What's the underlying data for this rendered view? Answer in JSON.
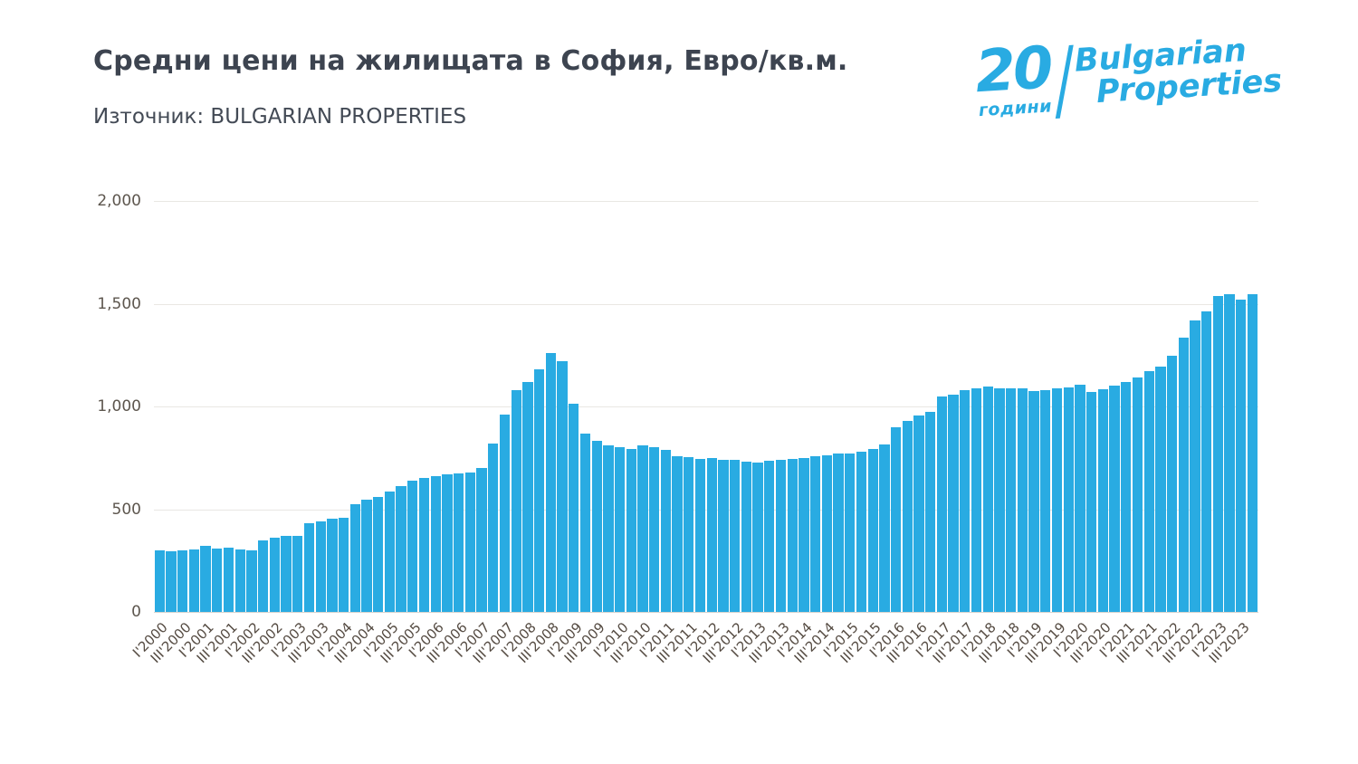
{
  "header": {
    "title": "Средни цени на жилищата в София, Евро/кв.м.",
    "source": "Източник: BULGARIAN PROPERTIES"
  },
  "logo": {
    "number": "20",
    "years_label": "години",
    "brand_line1": "Bulgarian",
    "brand_line2": "Properties",
    "color": "#29abe2"
  },
  "chart_data": {
    "type": "bar",
    "title": "Средни цени на жилищата в София, Евро/кв.м.",
    "source_label": "Източник: BULGARIAN PROPERTIES",
    "unit": "EUR/sq.m",
    "bar_color": "#29abe2",
    "grid": true,
    "legend": "none",
    "ylim": [
      0,
      2000
    ],
    "yticks": [
      0,
      500,
      1000,
      1500,
      2000
    ],
    "ytick_labels": [
      "0",
      "500",
      "1,000",
      "1,500",
      "2,000"
    ],
    "x_tick_every": 2,
    "x_tick_labels": [
      "I'2000",
      "III'2000",
      "I'2001",
      "III'2001",
      "I'2002",
      "III'2002",
      "I'2003",
      "III'2003",
      "I'2004",
      "III'2004",
      "I'2005",
      "III'2005",
      "I'2006",
      "III'2006",
      "I'2007",
      "III'2007",
      "I'2008",
      "III'2008",
      "I'2009",
      "III'2009",
      "I'2010",
      "III'2010",
      "I'2011",
      "III'2011",
      "I'2012",
      "III'2012",
      "I'2013",
      "III'2013",
      "I'2014",
      "III'2014",
      "I'2015",
      "III'2015",
      "I'2016",
      "III'2016",
      "I'2017",
      "III'2017",
      "I'2018",
      "III'2018",
      "I'2019",
      "III'2019",
      "I'2020",
      "III'2020",
      "I'2021",
      "III'2021",
      "I'2022",
      "III'2022",
      "I'2023",
      "III'2023"
    ],
    "values": [
      300,
      297,
      300,
      305,
      322,
      310,
      312,
      302,
      300,
      348,
      362,
      368,
      372,
      430,
      442,
      452,
      460,
      525,
      545,
      558,
      588,
      612,
      640,
      652,
      660,
      668,
      672,
      680,
      702,
      818,
      962,
      1078,
      1120,
      1180,
      1262,
      1220,
      1012,
      868,
      832,
      812,
      800,
      795,
      812,
      800,
      790,
      758,
      752,
      745,
      748,
      742,
      738,
      730,
      728,
      735,
      740,
      746,
      750,
      756,
      764,
      770,
      772,
      780,
      792,
      815,
      900,
      930,
      955,
      975,
      1050,
      1058,
      1080,
      1090,
      1095,
      1090,
      1086,
      1086,
      1076,
      1080,
      1086,
      1092,
      1105,
      1070,
      1082,
      1100,
      1118,
      1142,
      1170,
      1196,
      1248,
      1335,
      1420,
      1462,
      1538,
      1548,
      1520,
      1548
    ]
  }
}
